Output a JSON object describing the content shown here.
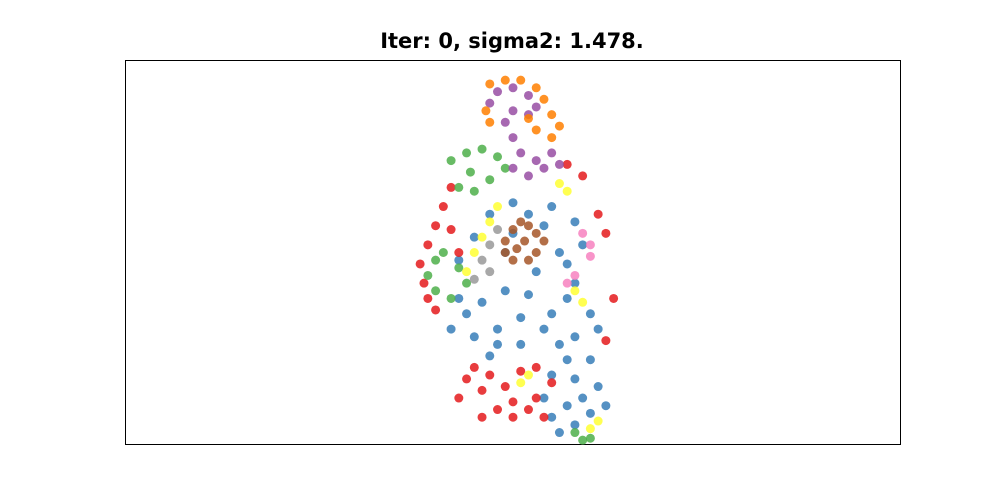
{
  "chart_data": {
    "type": "scatter",
    "title": "Iter: 0, sigma2: 1.478.",
    "xlabel": "",
    "ylabel": "",
    "axes_visible": false,
    "ticks_visible": false,
    "grid": false,
    "legend": "none",
    "xlim": [
      0,
      1
    ],
    "ylim": [
      0,
      1
    ],
    "y_direction": "down",
    "marker_size": "tiny",
    "series": [
      {
        "color": "#377eb8",
        "points": [
          [
            0.52,
            0.4
          ],
          [
            0.5,
            0.45
          ],
          [
            0.54,
            0.43
          ],
          [
            0.56,
            0.5
          ],
          [
            0.53,
            0.55
          ],
          [
            0.49,
            0.6
          ],
          [
            0.46,
            0.63
          ],
          [
            0.44,
            0.66
          ],
          [
            0.42,
            0.7
          ],
          [
            0.45,
            0.72
          ],
          [
            0.48,
            0.7
          ],
          [
            0.51,
            0.67
          ],
          [
            0.55,
            0.66
          ],
          [
            0.57,
            0.62
          ],
          [
            0.58,
            0.58
          ],
          [
            0.57,
            0.53
          ],
          [
            0.59,
            0.48
          ],
          [
            0.58,
            0.42
          ],
          [
            0.55,
            0.38
          ],
          [
            0.5,
            0.37
          ],
          [
            0.47,
            0.4
          ],
          [
            0.45,
            0.46
          ],
          [
            0.43,
            0.52
          ],
          [
            0.52,
            0.61
          ],
          [
            0.54,
            0.7
          ],
          [
            0.56,
            0.74
          ],
          [
            0.57,
            0.78
          ],
          [
            0.58,
            0.83
          ],
          [
            0.59,
            0.88
          ],
          [
            0.6,
            0.92
          ],
          [
            0.58,
            0.95
          ],
          [
            0.56,
            0.97
          ],
          [
            0.55,
            0.93
          ],
          [
            0.54,
            0.88
          ],
          [
            0.55,
            0.82
          ],
          [
            0.58,
            0.72
          ],
          [
            0.6,
            0.66
          ],
          [
            0.61,
            0.7
          ],
          [
            0.6,
            0.78
          ],
          [
            0.61,
            0.85
          ],
          [
            0.62,
            0.9
          ],
          [
            0.57,
            0.9
          ],
          [
            0.48,
            0.74
          ],
          [
            0.51,
            0.74
          ],
          [
            0.47,
            0.77
          ],
          [
            0.43,
            0.62
          ],
          [
            0.49,
            0.5
          ]
        ]
      },
      {
        "color": "#e41a1c",
        "points": [
          [
            0.42,
            0.33
          ],
          [
            0.41,
            0.38
          ],
          [
            0.4,
            0.43
          ],
          [
            0.39,
            0.48
          ],
          [
            0.38,
            0.53
          ],
          [
            0.385,
            0.58
          ],
          [
            0.39,
            0.62
          ],
          [
            0.4,
            0.65
          ],
          [
            0.42,
            0.44
          ],
          [
            0.43,
            0.5
          ],
          [
            0.45,
            0.8
          ],
          [
            0.47,
            0.82
          ],
          [
            0.49,
            0.85
          ],
          [
            0.5,
            0.89
          ],
          [
            0.52,
            0.91
          ],
          [
            0.53,
            0.88
          ],
          [
            0.51,
            0.81
          ],
          [
            0.53,
            0.8
          ],
          [
            0.55,
            0.84
          ],
          [
            0.54,
            0.93
          ],
          [
            0.48,
            0.91
          ],
          [
            0.46,
            0.86
          ],
          [
            0.44,
            0.83
          ],
          [
            0.43,
            0.88
          ],
          [
            0.46,
            0.93
          ],
          [
            0.5,
            0.93
          ],
          [
            0.61,
            0.4
          ],
          [
            0.62,
            0.45
          ],
          [
            0.63,
            0.62
          ],
          [
            0.62,
            0.73
          ],
          [
            0.59,
            0.3
          ],
          [
            0.57,
            0.27
          ]
        ]
      },
      {
        "color": "#4daf4a",
        "points": [
          [
            0.42,
            0.26
          ],
          [
            0.44,
            0.24
          ],
          [
            0.46,
            0.23
          ],
          [
            0.48,
            0.25
          ],
          [
            0.49,
            0.28
          ],
          [
            0.47,
            0.31
          ],
          [
            0.45,
            0.34
          ],
          [
            0.43,
            0.33
          ],
          [
            0.445,
            0.29
          ],
          [
            0.4,
            0.52
          ],
          [
            0.39,
            0.56
          ],
          [
            0.4,
            0.6
          ],
          [
            0.42,
            0.62
          ],
          [
            0.44,
            0.58
          ],
          [
            0.43,
            0.54
          ],
          [
            0.41,
            0.5
          ],
          [
            0.58,
            0.97
          ],
          [
            0.59,
            0.99
          ],
          [
            0.6,
            0.985
          ]
        ]
      },
      {
        "color": "#984ea3",
        "points": [
          [
            0.47,
            0.11
          ],
          [
            0.48,
            0.08
          ],
          [
            0.5,
            0.07
          ],
          [
            0.52,
            0.09
          ],
          [
            0.53,
            0.12
          ],
          [
            0.52,
            0.14
          ],
          [
            0.5,
            0.13
          ],
          [
            0.49,
            0.16
          ],
          [
            0.5,
            0.2
          ],
          [
            0.51,
            0.24
          ],
          [
            0.53,
            0.26
          ],
          [
            0.55,
            0.24
          ],
          [
            0.56,
            0.27
          ],
          [
            0.54,
            0.28
          ],
          [
            0.52,
            0.3
          ],
          [
            0.5,
            0.28
          ]
        ]
      },
      {
        "color": "#ff7f00",
        "points": [
          [
            0.47,
            0.06
          ],
          [
            0.49,
            0.05
          ],
          [
            0.51,
            0.05
          ],
          [
            0.53,
            0.07
          ],
          [
            0.54,
            0.1
          ],
          [
            0.55,
            0.14
          ],
          [
            0.56,
            0.17
          ],
          [
            0.55,
            0.2
          ],
          [
            0.53,
            0.18
          ],
          [
            0.52,
            0.15
          ],
          [
            0.465,
            0.13
          ],
          [
            0.47,
            0.16
          ]
        ]
      },
      {
        "color": "#ffff33",
        "points": [
          [
            0.48,
            0.38
          ],
          [
            0.47,
            0.42
          ],
          [
            0.46,
            0.46
          ],
          [
            0.45,
            0.5
          ],
          [
            0.44,
            0.55
          ],
          [
            0.56,
            0.32
          ],
          [
            0.57,
            0.34
          ],
          [
            0.58,
            0.6
          ],
          [
            0.59,
            0.63
          ],
          [
            0.52,
            0.82
          ],
          [
            0.51,
            0.84
          ],
          [
            0.6,
            0.96
          ],
          [
            0.61,
            0.94
          ]
        ]
      },
      {
        "color": "#a65628",
        "points": [
          [
            0.5,
            0.44
          ],
          [
            0.51,
            0.42
          ],
          [
            0.52,
            0.43
          ],
          [
            0.53,
            0.45
          ],
          [
            0.54,
            0.47
          ],
          [
            0.53,
            0.5
          ],
          [
            0.52,
            0.52
          ],
          [
            0.5,
            0.52
          ],
          [
            0.49,
            0.5
          ],
          [
            0.49,
            0.47
          ],
          [
            0.515,
            0.47
          ],
          [
            0.505,
            0.49
          ]
        ]
      },
      {
        "color": "#f781bf",
        "points": [
          [
            0.59,
            0.45
          ],
          [
            0.6,
            0.48
          ],
          [
            0.6,
            0.51
          ],
          [
            0.58,
            0.56
          ],
          [
            0.57,
            0.58
          ]
        ]
      },
      {
        "color": "#999999",
        "points": [
          [
            0.48,
            0.44
          ],
          [
            0.47,
            0.48
          ],
          [
            0.46,
            0.52
          ],
          [
            0.47,
            0.55
          ],
          [
            0.45,
            0.57
          ]
        ]
      }
    ]
  }
}
